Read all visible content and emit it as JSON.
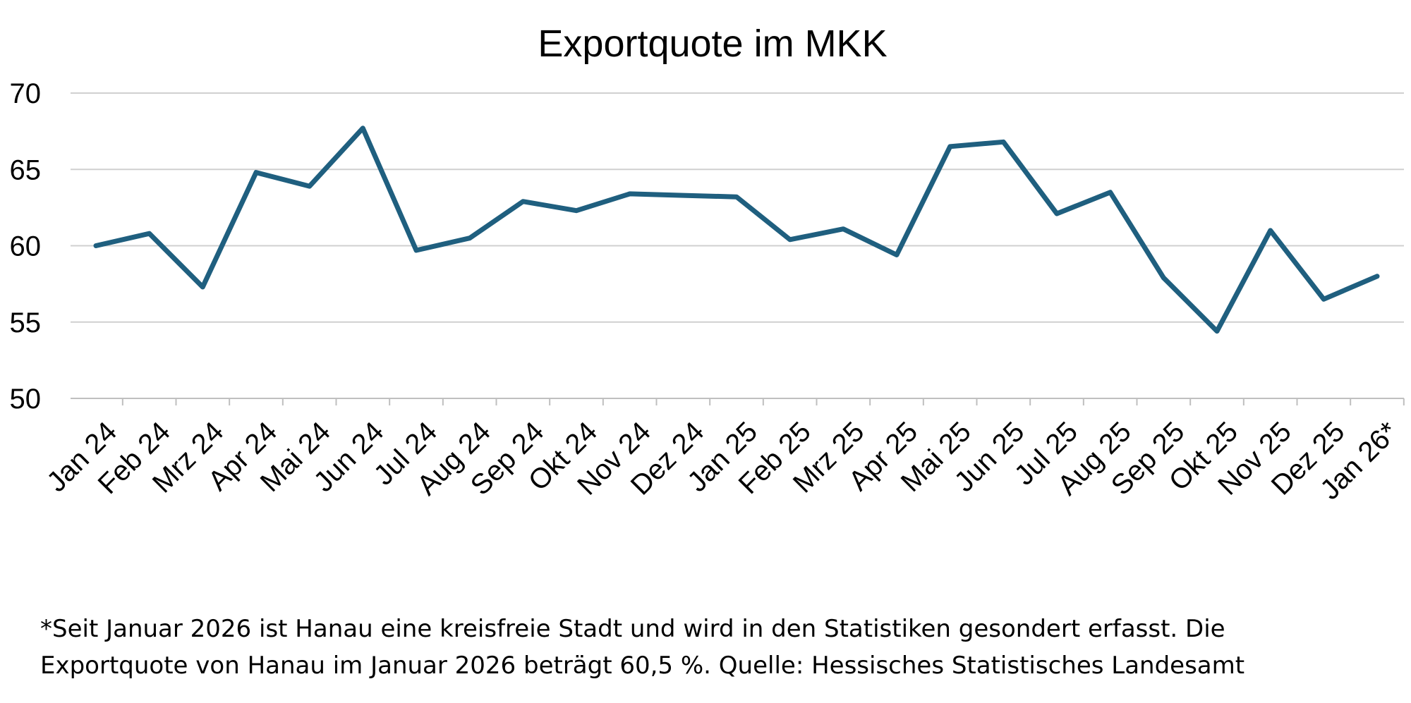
{
  "chart_data": {
    "type": "line",
    "title": "Exportquote im MKK",
    "xlabel": "",
    "ylabel": "",
    "categories": [
      "Jan 24",
      "Feb 24",
      "Mrz 24",
      "Apr 24",
      "Mai 24",
      "Jun 24",
      "Jul 24",
      "Aug 24",
      "Sep 24",
      "Okt 24",
      "Nov 24",
      "Dez 24",
      "Jan 25",
      "Feb 25",
      "Mrz 25",
      "Apr 25",
      "Mai 25",
      "Jun 25",
      "Jul 25",
      "Aug 25",
      "Sep 25",
      "Okt 25",
      "Nov 25",
      "Dez 25",
      "Jan 26*"
    ],
    "series": [
      {
        "values": [
          60.0,
          60.8,
          57.3,
          64.8,
          63.9,
          67.7,
          59.7,
          60.5,
          62.9,
          62.3,
          63.4,
          63.3,
          63.2,
          60.4,
          61.1,
          59.4,
          66.5,
          66.8,
          62.1,
          63.5,
          57.9,
          54.4,
          61.0,
          56.5,
          58.0
        ],
        "color": "#1f5f7f"
      }
    ],
    "ylim": [
      50,
      70
    ],
    "yticks": [
      "50",
      "55",
      "60",
      "65",
      "70"
    ],
    "grid": true,
    "legend": "none"
  },
  "footnote": {
    "line1": "*Seit Januar 2026 ist Hanau eine kreisfreie Stadt und wird in den Statistiken gesondert erfasst. Die",
    "line2": "Exportquote von Hanau im Januar 2026 beträgt 60,5 %.  Quelle: Hessisches Statistisches Landesamt"
  }
}
